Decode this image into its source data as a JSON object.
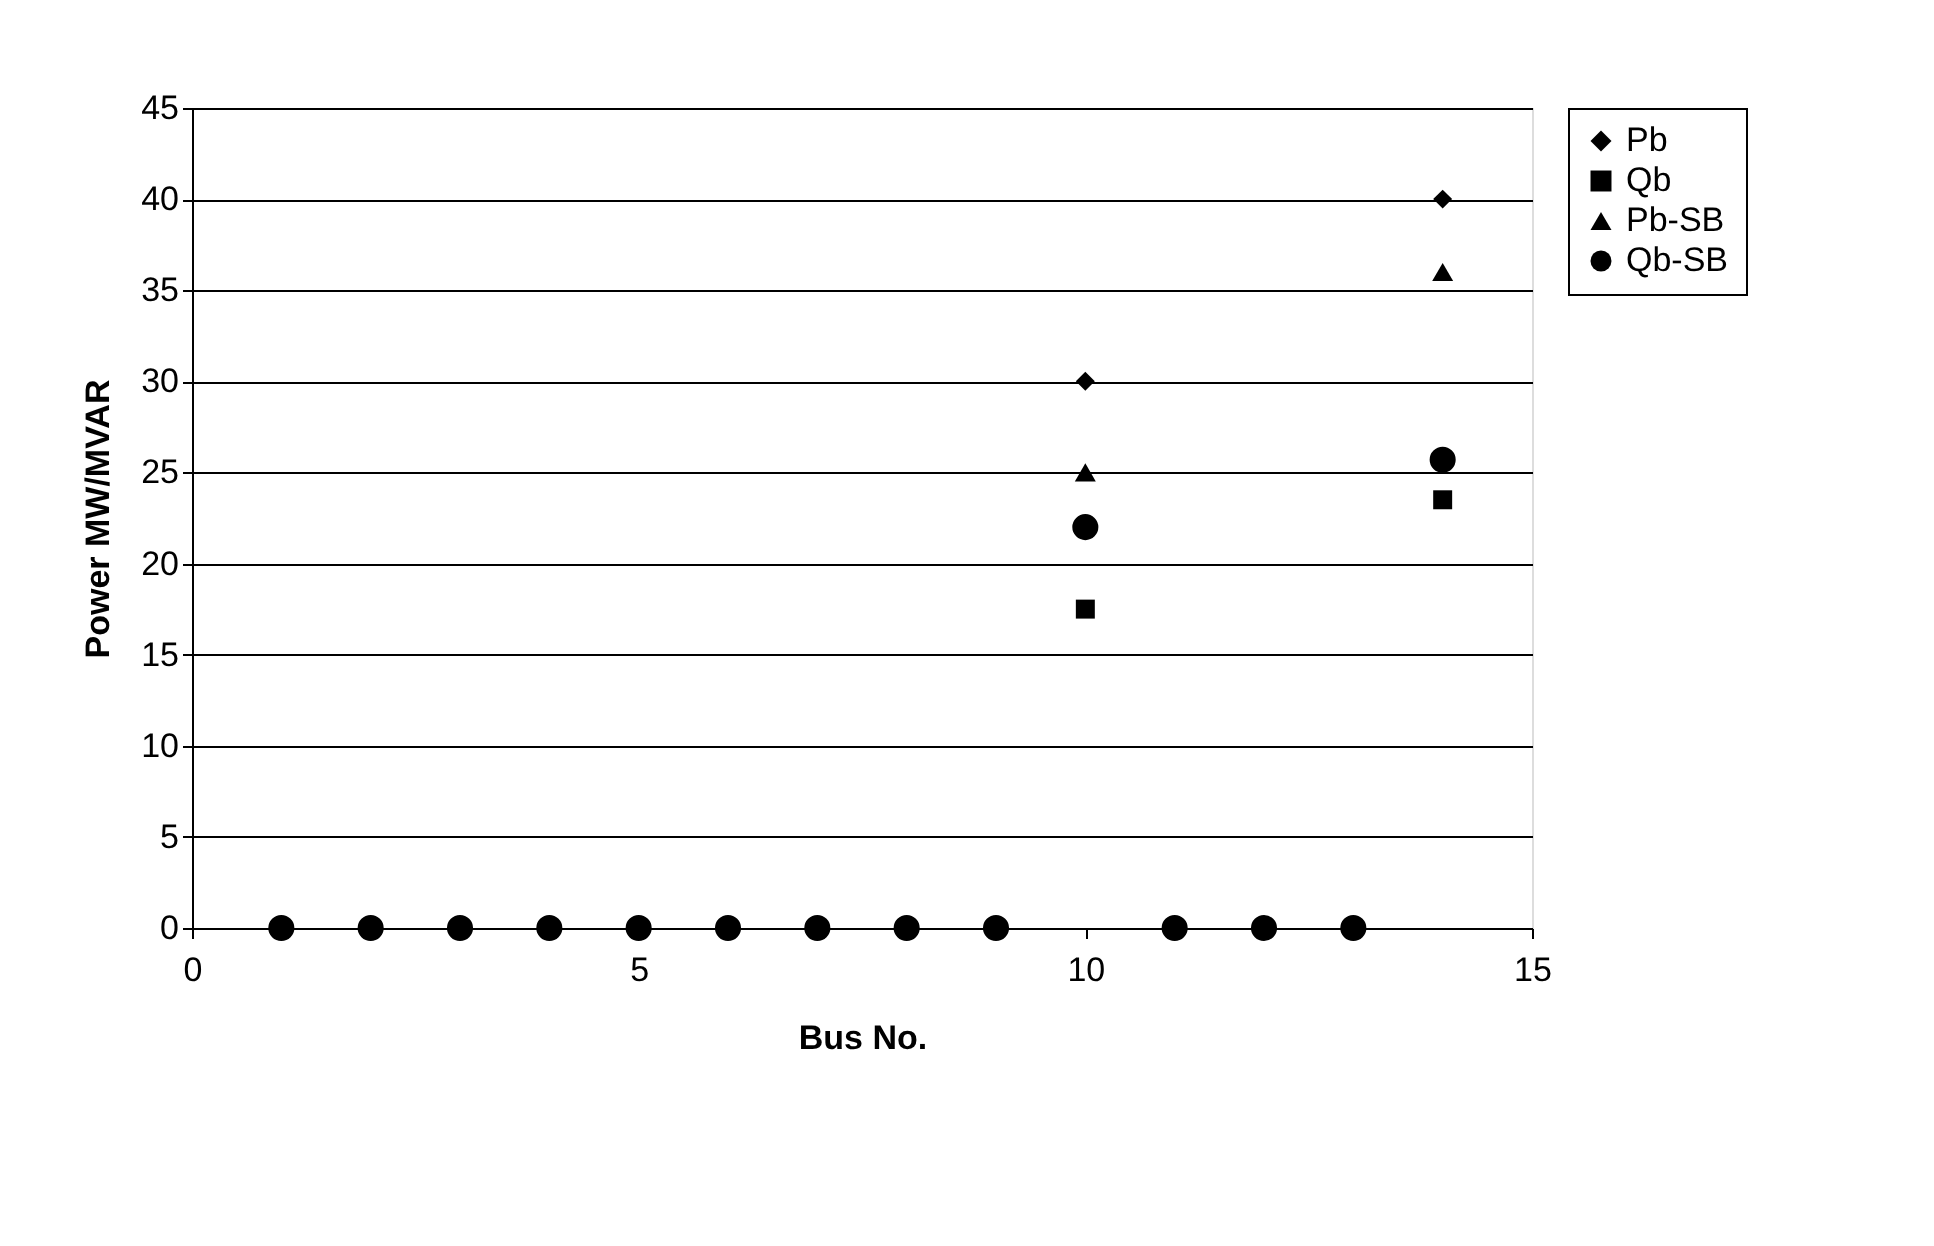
{
  "chart_data": {
    "type": "scatter",
    "xlabel": "Bus No.",
    "ylabel": "Power MW/MVAR",
    "x": [
      1,
      2,
      3,
      4,
      5,
      6,
      7,
      8,
      9,
      10,
      11,
      12,
      13,
      14
    ],
    "series": [
      {
        "name": "Pb",
        "color": "#000000",
        "marker": "diamond",
        "values": [
          null,
          null,
          null,
          null,
          null,
          null,
          null,
          null,
          null,
          30,
          null,
          null,
          null,
          40
        ]
      },
      {
        "name": "Qb",
        "color": "#000000",
        "marker": "square",
        "values": [
          null,
          null,
          null,
          null,
          null,
          null,
          null,
          null,
          null,
          17.5,
          null,
          null,
          null,
          23.5
        ]
      },
      {
        "name": "Pb-SB",
        "color": "#000000",
        "marker": "triangle",
        "values": [
          null,
          null,
          null,
          null,
          null,
          null,
          null,
          null,
          null,
          25,
          null,
          null,
          null,
          36
        ]
      },
      {
        "name": "Qb-SB",
        "color": "#000000",
        "marker": "circle",
        "values": [
          0,
          0,
          0,
          0,
          0,
          0,
          0,
          0,
          0,
          22,
          0,
          0,
          0,
          25.7
        ]
      }
    ],
    "xlim": [
      0,
      15
    ],
    "xticks": [
      0,
      5,
      10,
      15
    ],
    "ylim": [
      0,
      45
    ],
    "yticks": [
      0,
      5,
      10,
      15,
      20,
      25,
      30,
      35,
      40,
      45
    ],
    "grid": "y",
    "legend": "right"
  }
}
